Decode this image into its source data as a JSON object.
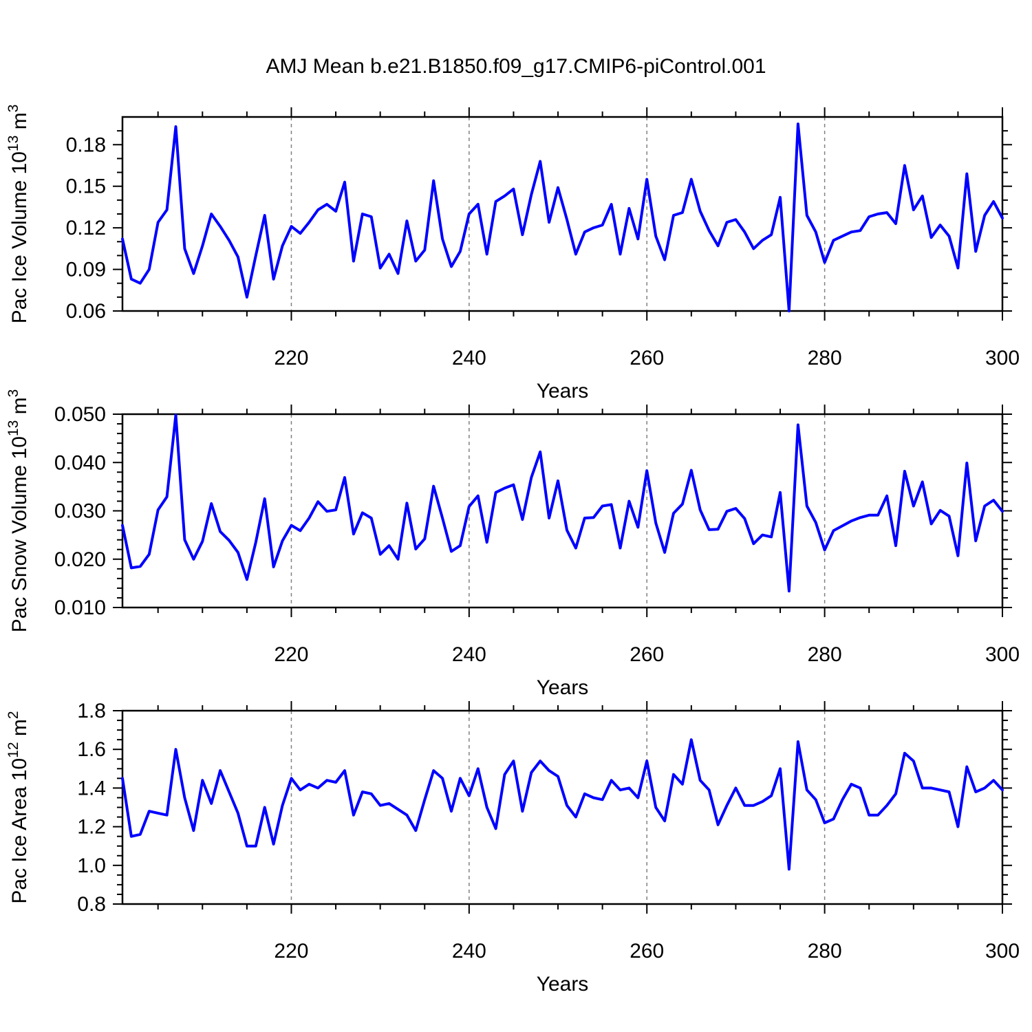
{
  "page": {
    "title": "AMJ Mean b.e21.B1850.f09_g17.CMIP6-piControl.001",
    "background": "#ffffff"
  },
  "style": {
    "line_color": "#0000ff",
    "axis_color": "#000000",
    "gridline_color": "#808080",
    "text_color": "#000000"
  },
  "chart_data": [
    {
      "type": "line",
      "name": "pac-ice-volume",
      "ylabel_parts": [
        {
          "t": "Pac Ice Volume 10"
        },
        {
          "t": "13",
          "sup": true
        },
        {
          "t": " m"
        },
        {
          "t": "3",
          "sup": true
        }
      ],
      "xlabel": "Years",
      "x_start": 201,
      "x_end": 300,
      "x_major_ticks": [
        220,
        240,
        260,
        280,
        300
      ],
      "x_minor_step": 5,
      "x_gridlines": [
        220,
        240,
        260,
        280,
        300
      ],
      "grid_dashed": true,
      "legend": "none",
      "ylim": [
        0.06,
        0.2
      ],
      "y_major_values": [
        0.06,
        0.09,
        0.12,
        0.15,
        0.18
      ],
      "y_tick_labels": [
        "0.06",
        "0.09",
        "0.12",
        "0.15",
        "0.18"
      ],
      "y_minor_step": 0.01,
      "values": [
        0.112,
        0.083,
        0.08,
        0.09,
        0.124,
        0.133,
        0.193,
        0.105,
        0.087,
        0.107,
        0.13,
        0.121,
        0.111,
        0.099,
        0.07,
        0.1,
        0.129,
        0.083,
        0.107,
        0.121,
        0.116,
        0.124,
        0.133,
        0.137,
        0.132,
        0.153,
        0.096,
        0.13,
        0.128,
        0.091,
        0.101,
        0.087,
        0.125,
        0.096,
        0.104,
        0.154,
        0.112,
        0.092,
        0.103,
        0.13,
        0.137,
        0.101,
        0.139,
        0.143,
        0.148,
        0.115,
        0.144,
        0.168,
        0.124,
        0.149,
        0.126,
        0.101,
        0.117,
        0.12,
        0.122,
        0.137,
        0.101,
        0.134,
        0.112,
        0.155,
        0.114,
        0.097,
        0.129,
        0.131,
        0.155,
        0.132,
        0.118,
        0.107,
        0.124,
        0.126,
        0.117,
        0.105,
        0.111,
        0.115,
        0.142,
        0.06,
        0.195,
        0.129,
        0.117,
        0.095,
        0.111,
        0.114,
        0.117,
        0.118,
        0.128,
        0.13,
        0.131,
        0.123,
        0.165,
        0.133,
        0.143,
        0.113,
        0.122,
        0.114,
        0.091,
        0.159,
        0.103,
        0.129,
        0.139,
        0.127
      ]
    },
    {
      "type": "line",
      "name": "pac-snow-volume",
      "ylabel_parts": [
        {
          "t": "Pac Snow Volume 10"
        },
        {
          "t": "13",
          "sup": true
        },
        {
          "t": " m"
        },
        {
          "t": "3",
          "sup": true
        }
      ],
      "xlabel": "Years",
      "x_start": 201,
      "x_end": 300,
      "x_major_ticks": [
        220,
        240,
        260,
        280,
        300
      ],
      "x_minor_step": 5,
      "x_gridlines": [
        220,
        240,
        260,
        280,
        300
      ],
      "grid_dashed": true,
      "legend": "none",
      "ylim": [
        0.01,
        0.05
      ],
      "y_major_values": [
        0.01,
        0.02,
        0.03,
        0.04,
        0.05
      ],
      "y_tick_labels": [
        "0.010",
        "0.020",
        "0.030",
        "0.040",
        "0.050"
      ],
      "y_minor_step": 0.002,
      "values": [
        0.027,
        0.0182,
        0.0185,
        0.021,
        0.0302,
        0.0329,
        0.0498,
        0.024,
        0.02,
        0.0237,
        0.0315,
        0.0257,
        0.0239,
        0.0214,
        0.0158,
        0.0235,
        0.0325,
        0.0184,
        0.0238,
        0.027,
        0.0259,
        0.0285,
        0.0319,
        0.0299,
        0.0302,
        0.0369,
        0.0252,
        0.0296,
        0.0285,
        0.021,
        0.0228,
        0.02,
        0.0316,
        0.0221,
        0.0242,
        0.0351,
        0.0285,
        0.0216,
        0.0228,
        0.0309,
        0.0331,
        0.0235,
        0.0338,
        0.0347,
        0.0354,
        0.0282,
        0.0369,
        0.0422,
        0.0285,
        0.0362,
        0.026,
        0.0223,
        0.0285,
        0.0286,
        0.031,
        0.0313,
        0.0223,
        0.032,
        0.0266,
        0.0383,
        0.0275,
        0.0214,
        0.0295,
        0.0314,
        0.0384,
        0.0302,
        0.0261,
        0.0262,
        0.0299,
        0.0305,
        0.0284,
        0.0232,
        0.025,
        0.0246,
        0.0338,
        0.0134,
        0.0478,
        0.031,
        0.0276,
        0.0219,
        0.0259,
        0.0269,
        0.0279,
        0.0286,
        0.0291,
        0.0291,
        0.0331,
        0.0228,
        0.0382,
        0.031,
        0.036,
        0.0273,
        0.0301,
        0.0289,
        0.0207,
        0.0399,
        0.0238,
        0.031,
        0.0322,
        0.0299
      ]
    },
    {
      "type": "line",
      "name": "pac-ice-area",
      "ylabel_parts": [
        {
          "t": "Pac Ice Area 10"
        },
        {
          "t": "12",
          "sup": true
        },
        {
          "t": " m"
        },
        {
          "t": "2",
          "sup": true
        }
      ],
      "xlabel": "Years",
      "x_start": 201,
      "x_end": 300,
      "x_major_ticks": [
        220,
        240,
        260,
        280,
        300
      ],
      "x_minor_step": 5,
      "x_gridlines": [
        220,
        240,
        260,
        280,
        300
      ],
      "grid_dashed": true,
      "legend": "none",
      "ylim": [
        0.8,
        1.8
      ],
      "y_major_values": [
        0.8,
        1.0,
        1.2,
        1.4,
        1.6,
        1.8
      ],
      "y_tick_labels": [
        "0.8",
        "1.0",
        "1.2",
        "1.4",
        "1.6",
        "1.8"
      ],
      "y_minor_step": 0.05,
      "values": [
        1.45,
        1.15,
        1.16,
        1.28,
        1.27,
        1.26,
        1.6,
        1.35,
        1.18,
        1.44,
        1.32,
        1.49,
        1.38,
        1.27,
        1.1,
        1.1,
        1.3,
        1.11,
        1.31,
        1.45,
        1.39,
        1.42,
        1.4,
        1.44,
        1.43,
        1.49,
        1.26,
        1.38,
        1.37,
        1.31,
        1.32,
        1.29,
        1.26,
        1.18,
        1.34,
        1.49,
        1.45,
        1.28,
        1.45,
        1.36,
        1.5,
        1.3,
        1.19,
        1.47,
        1.54,
        1.28,
        1.48,
        1.54,
        1.49,
        1.46,
        1.31,
        1.25,
        1.37,
        1.35,
        1.34,
        1.44,
        1.39,
        1.4,
        1.35,
        1.54,
        1.3,
        1.23,
        1.47,
        1.42,
        1.65,
        1.44,
        1.39,
        1.21,
        1.31,
        1.4,
        1.31,
        1.31,
        1.33,
        1.36,
        1.5,
        0.98,
        1.64,
        1.39,
        1.34,
        1.22,
        1.24,
        1.34,
        1.42,
        1.4,
        1.26,
        1.26,
        1.31,
        1.37,
        1.58,
        1.54,
        1.4,
        1.4,
        1.39,
        1.38,
        1.2,
        1.51,
        1.38,
        1.4,
        1.44,
        1.39
      ]
    }
  ]
}
